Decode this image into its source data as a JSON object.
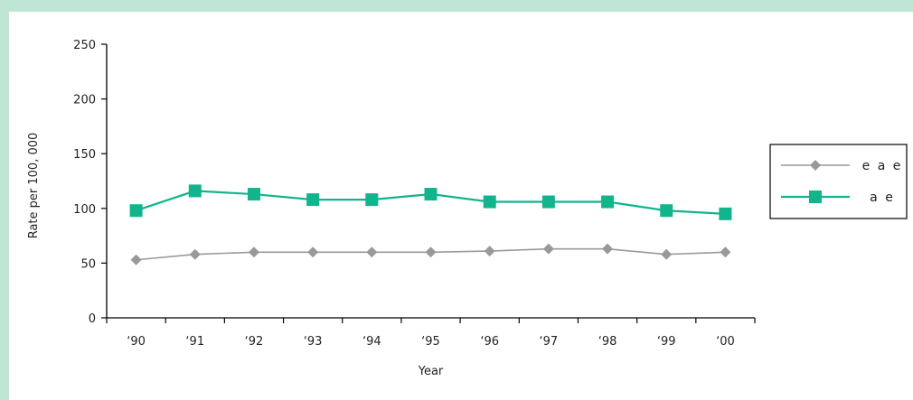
{
  "chart_data": {
    "type": "line",
    "title": "",
    "xlabel": "Year",
    "ylabel": "Rate per 100, 000",
    "categories": [
      "‘90",
      "‘91",
      "‘92",
      "‘93",
      "‘94",
      "‘95",
      "‘96",
      "‘97",
      "‘98",
      "‘99",
      "‘00"
    ],
    "ylim": [
      0,
      250
    ],
    "yticks": [
      0,
      50,
      100,
      150,
      200,
      250
    ],
    "grid": false,
    "legend_position": "right",
    "series": [
      {
        "name": "e a e",
        "color": "#999999",
        "marker": "diamond",
        "values": [
          53,
          58,
          60,
          60,
          60,
          60,
          61,
          63,
          63,
          58,
          60
        ]
      },
      {
        "name": "a e",
        "color": "#12b48c",
        "marker": "square",
        "values": [
          98,
          116,
          113,
          108,
          108,
          113,
          106,
          106,
          106,
          98,
          95
        ]
      }
    ]
  }
}
